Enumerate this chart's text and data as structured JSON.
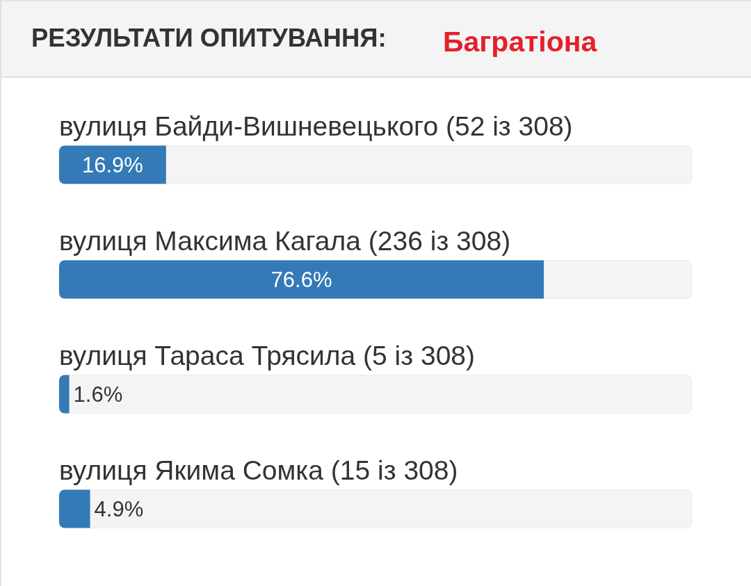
{
  "chart_data": {
    "type": "bar",
    "orientation": "horizontal",
    "title": "РЕЗУЛЬТАТИ ОПИТУВАННЯ:",
    "subtitle": "Багратіона",
    "categories": [
      "вулиця Байди-Вишневецького (52 із 308)",
      "вулиця Максима Кагала (236 із 308)",
      "вулиця Тараса Трясила (5 із 308)",
      "вулиця Якима Сомка (15 із 308)"
    ],
    "values": [
      16.9,
      76.6,
      1.6,
      4.9
    ],
    "color": "#337ab7",
    "value_labels": [
      "16.9%",
      "76.6%",
      "1.6%",
      "4.9%"
    ],
    "xlim": [
      0,
      100
    ],
    "tick_labels": "y"
  }
}
